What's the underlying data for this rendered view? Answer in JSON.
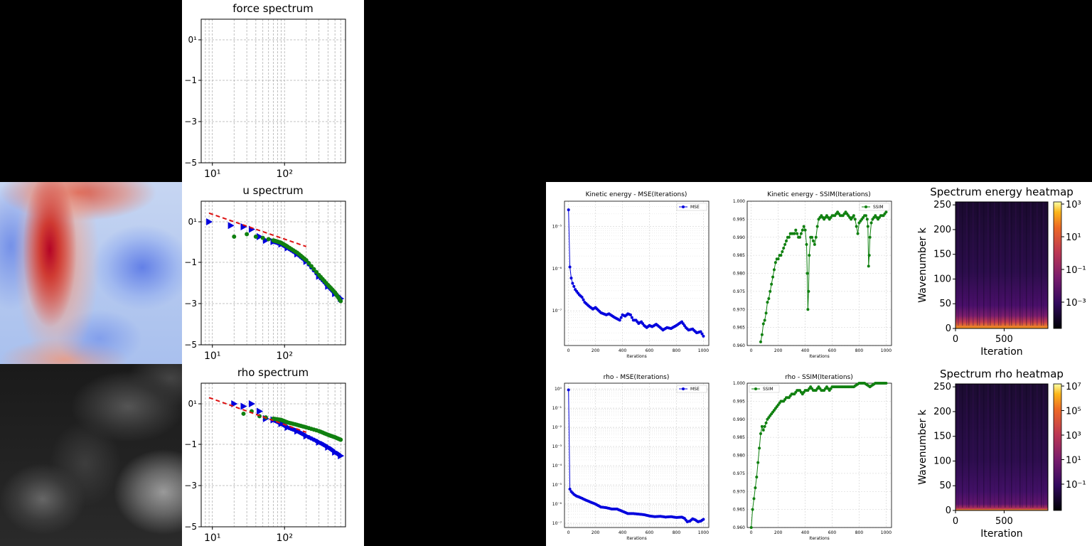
{
  "titles": {
    "force": "force spectrum",
    "u": "u spectrum",
    "rho": "rho spectrum",
    "ke_mse": "Kinetic energy - MSE(Iterations)",
    "ke_ssim": "Kinetic energy - SSIM(Iterations)",
    "rho_mse": "rho - MSE(Iterations)",
    "rho_ssim": "rho - SSIM(Iterations)",
    "heat_energy": "Spectrum energy heatmap",
    "heat_rho": "Spectrum rho heatmap"
  },
  "legend": {
    "mse": "MSE",
    "ssim": "SSIM"
  },
  "axis_labels": {
    "iterations": "Iterations",
    "iteration": "Iteration",
    "wavenumber": "Wavenumber k"
  },
  "spectrum_ticks": {
    "x": [
      "10¹",
      "10²"
    ],
    "y": [
      "0¹",
      "−1",
      "−3",
      "−5"
    ],
    "u_y": [
      "0¹",
      "−1",
      "−3",
      "−5"
    ],
    "rho_y": [
      "0¹",
      "−1",
      "−3",
      "−5"
    ]
  },
  "iter_ticks": [
    "0",
    "200",
    "400",
    "600",
    "800",
    "1000"
  ],
  "ke_mse_yticks": [
    "10⁻⁵",
    "10⁻⁶",
    "10⁻⁷"
  ],
  "rho_mse_yticks": [
    "10⁰",
    "10⁻¹",
    "10⁻²",
    "10⁻³",
    "10⁻⁴",
    "10⁻⁵",
    "10⁻⁶",
    "10⁻⁷"
  ],
  "ssim_yticks": [
    "1.000",
    "0.995",
    "0.990",
    "0.985",
    "0.980",
    "0.975",
    "0.970",
    "0.965",
    "0.960"
  ],
  "heat_yticks": [
    "250",
    "200",
    "150",
    "100",
    "50",
    "0"
  ],
  "heat_xticks": [
    "0",
    "500"
  ],
  "heat_energy_cbar": [
    "10³",
    "10¹",
    "10⁻¹",
    "10⁻³"
  ],
  "heat_rho_cbar": [
    "10⁷",
    "10⁵",
    "10³",
    "10¹",
    "10⁻¹"
  ],
  "colors": {
    "blue": "#0000dd",
    "green": "#108010",
    "red": "#dd1111",
    "grid": "#b0b0b0"
  },
  "chart_data": [
    {
      "type": "scatter",
      "title": "u spectrum",
      "x_scale": "log",
      "y_scale": "log",
      "series": [
        {
          "marker": "triangle",
          "color": "#0000dd",
          "x": [
            9,
            18,
            27,
            35,
            45,
            55,
            70,
            90,
            110,
            150,
            200,
            300,
            400,
            500,
            600
          ],
          "y": [
            0.0,
            -0.15,
            -0.2,
            -0.3,
            -0.6,
            -0.75,
            -0.8,
            -0.9,
            -1.05,
            -1.3,
            -1.6,
            -2.2,
            -2.6,
            -2.9,
            -3.1
          ]
        },
        {
          "marker": "circle",
          "color": "#108010",
          "x": [
            20,
            30,
            40,
            50,
            60,
            70,
            80,
            90,
            110,
            150,
            200,
            300,
            400,
            500,
            600
          ],
          "y": [
            -0.6,
            -0.5,
            -0.6,
            -0.65,
            -0.7,
            -0.75,
            -0.8,
            -0.85,
            -1.0,
            -1.25,
            -1.55,
            -2.15,
            -2.55,
            -2.85,
            -3.2
          ]
        },
        {
          "marker": "dashed-line",
          "color": "#dd1111",
          "x": [
            9,
            200
          ],
          "y": [
            0.35,
            -1.0
          ]
        }
      ]
    },
    {
      "type": "scatter",
      "title": "rho spectrum",
      "x_scale": "log",
      "y_scale": "log",
      "series": [
        {
          "marker": "triangle",
          "color": "#0000dd",
          "x": [
            20,
            27,
            35,
            45,
            55,
            70,
            90,
            110,
            150,
            200,
            300,
            400,
            500,
            600
          ],
          "y": [
            0.0,
            -0.1,
            0.0,
            -0.3,
            -0.6,
            -0.65,
            -0.8,
            -0.95,
            -1.1,
            -1.3,
            -1.55,
            -1.75,
            -1.95,
            -2.1
          ]
        },
        {
          "marker": "circle",
          "color": "#108010",
          "x": [
            27,
            35,
            45,
            55,
            70,
            90,
            110,
            150,
            200,
            300,
            400,
            500,
            600
          ],
          "y": [
            -0.4,
            -0.3,
            -0.5,
            -0.55,
            -0.6,
            -0.65,
            -0.75,
            -0.85,
            -0.95,
            -1.1,
            -1.25,
            -1.35,
            -1.45
          ]
        },
        {
          "marker": "dashed-line",
          "color": "#dd1111",
          "x": [
            9,
            200
          ],
          "y": [
            0.25,
            -1.15
          ]
        }
      ]
    },
    {
      "type": "line",
      "title": "Kinetic energy - MSE(Iterations)",
      "y_scale": "log",
      "legend": "MSE",
      "x": [
        0,
        10,
        20,
        30,
        40,
        50,
        60,
        80,
        100,
        120,
        150,
        180,
        200,
        240,
        280,
        300,
        340,
        380,
        400,
        420,
        440,
        460,
        480,
        500,
        520,
        540,
        560,
        580,
        600,
        620,
        650,
        680,
        700,
        730,
        760,
        800,
        840,
        870,
        890,
        920,
        950,
        980,
        1000
      ],
      "y": [
        2.5e-05,
        1.1e-06,
        6e-07,
        4.5e-07,
        3.8e-07,
        3.2e-07,
        2.9e-07,
        2.4e-07,
        2.1e-07,
        1.6e-07,
        1.3e-07,
        1.1e-07,
        1.2e-07,
        9e-08,
        8e-08,
        8.5e-08,
        7e-08,
        6e-08,
        8e-08,
        7.5e-08,
        8.5e-08,
        8e-08,
        6e-08,
        6e-08,
        5e-08,
        5.5e-08,
        4.5e-08,
        4e-08,
        4.5e-08,
        4.2e-08,
        4.8e-08,
        4e-08,
        3.5e-08,
        4e-08,
        3.8e-08,
        4.5e-08,
        5.5e-08,
        4e-08,
        3.5e-08,
        3.7e-08,
        3e-08,
        3.2e-08,
        2.5e-08
      ],
      "ylim": [
        1.5e-08,
        4e-05
      ],
      "xlim": [
        -30,
        1040
      ]
    },
    {
      "type": "line",
      "title": "Kinetic energy - SSIM(Iterations)",
      "legend": "SSIM",
      "x": [
        70,
        80,
        90,
        100,
        110,
        120,
        130,
        140,
        150,
        160,
        170,
        180,
        190,
        200,
        210,
        220,
        230,
        240,
        250,
        260,
        270,
        280,
        290,
        300,
        310,
        320,
        330,
        340,
        350,
        360,
        370,
        380,
        390,
        400,
        410,
        415,
        420,
        425,
        430,
        440,
        450,
        460,
        470,
        480,
        490,
        500,
        520,
        540,
        560,
        580,
        600,
        620,
        640,
        660,
        680,
        700,
        720,
        740,
        760,
        770,
        780,
        790,
        800,
        820,
        840,
        850,
        860,
        865,
        870,
        875,
        880,
        890,
        900,
        920,
        940,
        960,
        980,
        1000
      ],
      "y": [
        0.961,
        0.963,
        0.966,
        0.967,
        0.969,
        0.972,
        0.973,
        0.975,
        0.977,
        0.979,
        0.981,
        0.983,
        0.984,
        0.984,
        0.985,
        0.985,
        0.986,
        0.987,
        0.988,
        0.989,
        0.99,
        0.99,
        0.991,
        0.991,
        0.991,
        0.991,
        0.992,
        0.991,
        0.99,
        0.99,
        0.991,
        0.992,
        0.993,
        0.992,
        0.988,
        0.98,
        0.97,
        0.975,
        0.985,
        0.99,
        0.99,
        0.989,
        0.988,
        0.99,
        0.993,
        0.995,
        0.996,
        0.995,
        0.996,
        0.995,
        0.996,
        0.996,
        0.997,
        0.996,
        0.996,
        0.997,
        0.996,
        0.995,
        0.996,
        0.995,
        0.993,
        0.991,
        0.994,
        0.995,
        0.996,
        0.996,
        0.995,
        0.993,
        0.982,
        0.985,
        0.99,
        0.994,
        0.995,
        0.996,
        0.995,
        0.996,
        0.996,
        0.997
      ],
      "ylim": [
        0.96,
        1.0
      ],
      "xlim": [
        -30,
        1040
      ]
    },
    {
      "type": "line",
      "title": "rho - MSE(Iterations)",
      "y_scale": "log",
      "legend": "MSE",
      "x": [
        0,
        10,
        20,
        40,
        60,
        80,
        100,
        120,
        160,
        200,
        240,
        280,
        320,
        360,
        400,
        440,
        480,
        520,
        560,
        600,
        640,
        680,
        720,
        760,
        800,
        840,
        860,
        880,
        900,
        920,
        940,
        960,
        980,
        1000
      ],
      "y": [
        0.9,
        6e-06,
        4.5e-06,
        3.2e-06,
        2.6e-06,
        2.3e-06,
        2e-06,
        1.7e-06,
        1.3e-06,
        1e-06,
        7e-07,
        6.5e-07,
        5.5e-07,
        5.5e-07,
        4.2e-07,
        3.2e-07,
        3.2e-07,
        3e-07,
        2.8e-07,
        2.4e-07,
        2.2e-07,
        2.3e-07,
        2.1e-07,
        2.2e-07,
        2e-07,
        2.1e-07,
        1.8e-07,
        1.2e-07,
        1.3e-07,
        1.7e-07,
        1.5e-07,
        1.2e-07,
        1.3e-07,
        1.6e-07
      ],
      "ylim": [
        6e-08,
        2
      ],
      "xlim": [
        -30,
        1040
      ]
    },
    {
      "type": "line",
      "title": "rho - SSIM(Iterations)",
      "legend": "SSIM",
      "x": [
        0,
        10,
        20,
        30,
        40,
        50,
        60,
        70,
        80,
        90,
        100,
        110,
        120,
        140,
        160,
        180,
        200,
        220,
        240,
        260,
        280,
        300,
        320,
        340,
        360,
        380,
        400,
        420,
        440,
        460,
        480,
        500,
        520,
        540,
        560,
        580,
        600,
        640,
        680,
        720,
        760,
        800,
        840,
        880,
        920,
        960,
        1000
      ],
      "y": [
        0.96,
        0.965,
        0.968,
        0.971,
        0.974,
        0.978,
        0.982,
        0.986,
        0.988,
        0.987,
        0.988,
        0.989,
        0.99,
        0.991,
        0.992,
        0.993,
        0.994,
        0.995,
        0.995,
        0.996,
        0.996,
        0.997,
        0.997,
        0.998,
        0.998,
        0.997,
        0.998,
        0.998,
        0.999,
        0.998,
        0.998,
        0.999,
        0.998,
        0.998,
        0.999,
        0.998,
        0.999,
        0.999,
        0.999,
        0.999,
        0.999,
        1.0,
        1.0,
        0.999,
        1.0,
        1.0,
        1.0
      ],
      "ylim": [
        0.96,
        1.0
      ],
      "xlim": [
        -30,
        1040
      ]
    },
    {
      "type": "heatmap",
      "title": "Spectrum energy heatmap",
      "xlabel": "Iteration",
      "ylabel": "Wavenumber k",
      "xlim": [
        0,
        1000
      ],
      "ylim": [
        0,
        256
      ],
      "colormap": "inferno",
      "colorbar": "log, 10⁻⁴ to 10³"
    },
    {
      "type": "heatmap",
      "title": "Spectrum rho heatmap",
      "xlabel": "Iteration",
      "ylabel": "Wavenumber k",
      "xlim": [
        0,
        1000
      ],
      "ylim": [
        0,
        256
      ],
      "colormap": "inferno",
      "colorbar": "log, 10⁻² to 10⁷"
    }
  ]
}
